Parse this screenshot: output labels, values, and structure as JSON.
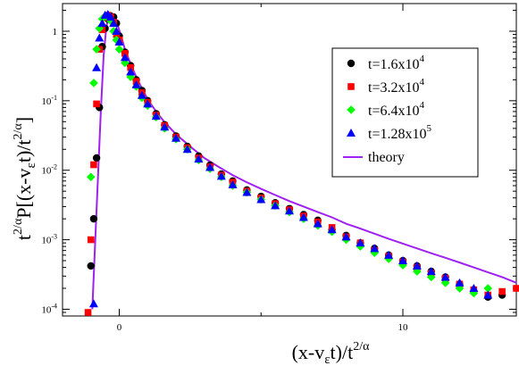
{
  "chart_data": {
    "type": "scatter",
    "xlabel": "(x-v_εt)/t^{2/α}",
    "ylabel": "t^{2/α}P[(x-v_εt)/t^{2/α}]",
    "xlim": [
      -2,
      14
    ],
    "ylim": [
      8e-05,
      2.5
    ],
    "yscale": "log",
    "x_ticks": [
      {
        "value": 0,
        "label": "0"
      },
      {
        "value": 10,
        "label": "10"
      }
    ],
    "y_ticks": [
      {
        "value": 0.0001,
        "base": "10",
        "exp": "-4"
      },
      {
        "value": 0.001,
        "base": "10",
        "exp": "-3"
      },
      {
        "value": 0.01,
        "base": "10",
        "exp": "-2"
      },
      {
        "value": 0.1,
        "base": "10",
        "exp": "-1"
      },
      {
        "value": 1,
        "base": "1",
        "exp": ""
      }
    ],
    "legend_position": "top-right",
    "colors": {
      "black": "#000000",
      "red": "#ff0000",
      "green": "#00ff00",
      "blue": "#0000ff",
      "theory": "#a020f0"
    },
    "series": [
      {
        "name": "t=1.6x10^4",
        "label_base": "t=1.6x10",
        "label_exp": "4",
        "marker": "circle",
        "color": "#000000",
        "x": [
          -1.0,
          -0.9,
          -0.8,
          -0.7,
          -0.6,
          -0.5,
          -0.4,
          -0.3,
          -0.2,
          -0.1,
          0.0,
          0.2,
          0.4,
          0.6,
          0.8,
          1.0,
          1.3,
          1.6,
          2.0,
          2.4,
          2.8,
          3.2,
          3.6,
          4.0,
          4.5,
          5.0,
          5.5,
          6.0,
          6.5,
          7.0,
          7.5,
          8.0,
          8.5,
          9.0,
          9.5,
          10.0,
          10.5,
          11.0,
          11.5,
          12.0,
          12.5,
          13.0,
          13.5
        ],
        "y": [
          0.00042,
          0.002,
          0.015,
          0.08,
          0.6,
          1.1,
          1.5,
          1.65,
          1.6,
          1.3,
          0.85,
          0.5,
          0.32,
          0.2,
          0.14,
          0.1,
          0.065,
          0.045,
          0.031,
          0.022,
          0.016,
          0.0118,
          0.0088,
          0.007,
          0.0052,
          0.0042,
          0.0034,
          0.0028,
          0.0023,
          0.0019,
          0.0014,
          0.00115,
          0.0009,
          0.00075,
          0.0006,
          0.0005,
          0.00042,
          0.00035,
          0.00029,
          0.00023,
          0.00018,
          0.00015,
          0.00016
        ]
      },
      {
        "name": "t=3.2x10^4",
        "label_base": "t=3.2x10",
        "label_exp": "4",
        "marker": "square",
        "color": "#ff0000",
        "x": [
          -1.1,
          -1.0,
          -0.9,
          -0.8,
          -0.7,
          -0.6,
          -0.5,
          -0.4,
          -0.3,
          -0.2,
          -0.1,
          0.0,
          0.2,
          0.4,
          0.6,
          0.8,
          1.0,
          1.3,
          1.6,
          2.0,
          2.4,
          2.8,
          3.2,
          3.6,
          4.0,
          4.5,
          5.0,
          5.5,
          6.0,
          6.5,
          7.0,
          7.5,
          8.0,
          8.5,
          9.0,
          9.5,
          10.0,
          10.5,
          11.0,
          11.5,
          12.0,
          12.5,
          13.0,
          13.5,
          14.0
        ],
        "y": [
          9e-05,
          0.001,
          0.012,
          0.09,
          0.55,
          1.05,
          1.55,
          1.7,
          1.6,
          1.35,
          0.9,
          0.75,
          0.48,
          0.3,
          0.19,
          0.13,
          0.095,
          0.062,
          0.044,
          0.03,
          0.021,
          0.015,
          0.0112,
          0.0085,
          0.0067,
          0.005,
          0.004,
          0.0033,
          0.0027,
          0.0022,
          0.0018,
          0.0015,
          0.0011,
          0.0009,
          0.0007,
          0.00058,
          0.00048,
          0.0004,
          0.00033,
          0.00028,
          0.00023,
          0.00019,
          0.00016,
          0.00018,
          0.0002
        ]
      },
      {
        "name": "t=6.4x10^4",
        "label_base": "t=6.4x10",
        "label_exp": "4",
        "marker": "diamond",
        "color": "#00ff00",
        "x": [
          -1.0,
          -0.9,
          -0.8,
          -0.7,
          -0.6,
          -0.5,
          -0.4,
          -0.3,
          -0.2,
          -0.1,
          0.0,
          0.2,
          0.4,
          0.6,
          0.8,
          1.0,
          1.3,
          1.6,
          2.0,
          2.4,
          2.8,
          3.2,
          3.6,
          4.0,
          4.5,
          5.0,
          5.5,
          6.0,
          6.5,
          7.0,
          7.5,
          8.0,
          8.5,
          9.0,
          9.5,
          10.0,
          10.5,
          11.0,
          11.5,
          12.0,
          12.5,
          13.0
        ],
        "y": [
          0.008,
          0.18,
          0.55,
          1.1,
          1.5,
          1.65,
          1.6,
          1.4,
          1.0,
          0.75,
          0.55,
          0.35,
          0.22,
          0.16,
          0.11,
          0.085,
          0.058,
          0.04,
          0.028,
          0.02,
          0.014,
          0.0105,
          0.008,
          0.006,
          0.0048,
          0.0038,
          0.0031,
          0.0025,
          0.002,
          0.0016,
          0.0013,
          0.001,
          0.0008,
          0.00065,
          0.00053,
          0.00043,
          0.00035,
          0.00029,
          0.00024,
          0.0002,
          0.00017,
          0.0002
        ]
      },
      {
        "name": "t=1.28x10^5",
        "label_base": "t=1.28x10",
        "label_exp": "5",
        "marker": "triangle",
        "color": "#0000ff",
        "x": [
          -0.9,
          -0.8,
          -0.7,
          -0.6,
          -0.5,
          -0.4,
          -0.3,
          -0.2,
          -0.1,
          0.0,
          0.2,
          0.4,
          0.6,
          0.8,
          1.0,
          1.3,
          1.6,
          2.0,
          2.4,
          2.8,
          3.2,
          3.6,
          4.0,
          4.5,
          5.0,
          5.5,
          6.0,
          6.5,
          7.0,
          7.5,
          8.0,
          8.5,
          9.0,
          9.5,
          10.0,
          10.5,
          11.0,
          11.5,
          12.0,
          12.5,
          13.0
        ],
        "y": [
          0.00012,
          0.3,
          0.8,
          1.3,
          1.7,
          1.75,
          1.6,
          1.3,
          1.0,
          0.7,
          0.42,
          0.26,
          0.17,
          0.12,
          0.09,
          0.06,
          0.042,
          0.029,
          0.02,
          0.0145,
          0.011,
          0.0082,
          0.0062,
          0.0048,
          0.0038,
          0.0031,
          0.0026,
          0.0021,
          0.0017,
          0.0014,
          0.0011,
          0.0009,
          0.00075,
          0.0006,
          0.0005,
          0.00042,
          0.00035,
          0.00029,
          0.00024,
          0.0002,
          0.00016
        ]
      }
    ],
    "theory": {
      "name": "theory",
      "x": [
        -0.95,
        -0.85,
        -0.75,
        -0.65,
        -0.55,
        -0.45,
        -0.35,
        -0.25,
        -0.15,
        -0.05,
        0.05,
        0.2,
        0.4,
        0.6,
        0.8,
        1.0,
        1.3,
        1.6,
        2.0,
        2.5,
        3.0,
        3.5,
        4.0,
        4.5,
        5.0,
        5.5,
        6.0,
        6.5,
        7.0,
        7.5,
        8.0,
        8.5,
        9.0,
        9.5,
        10.0,
        10.5,
        11.0,
        11.5,
        12.0,
        12.5,
        13.0,
        13.5,
        14.0
      ],
      "y": [
        0.0001,
        0.0009,
        0.008,
        0.07,
        0.45,
        1.2,
        1.65,
        1.7,
        1.5,
        1.2,
        0.9,
        0.55,
        0.34,
        0.22,
        0.15,
        0.105,
        0.07,
        0.049,
        0.033,
        0.022,
        0.015,
        0.0112,
        0.0085,
        0.0067,
        0.0054,
        0.0044,
        0.0036,
        0.003,
        0.0025,
        0.0021,
        0.0017,
        0.00145,
        0.00122,
        0.00103,
        0.00088,
        0.00075,
        0.00064,
        0.00055,
        0.00047,
        0.0004,
        0.00034,
        0.00029,
        0.00024
      ]
    }
  }
}
